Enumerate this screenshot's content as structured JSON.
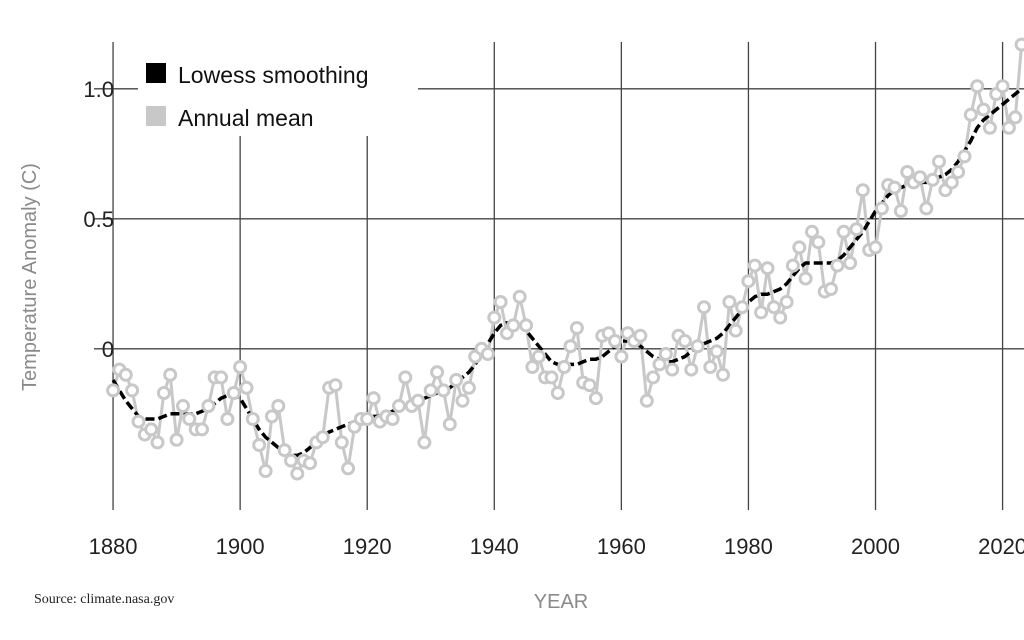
{
  "source": "Source: climate.nasa.gov",
  "colors": {
    "smoothing": "#000000",
    "annual": "#c8c8c8",
    "grid": "#444444",
    "marker_fill": "#ffffff"
  },
  "chart_data": {
    "type": "line",
    "title": "",
    "xlabel": "YEAR",
    "ylabel": "Temperature Anomaly (C)",
    "xlim": [
      1877,
      2024
    ],
    "ylim": [
      -0.62,
      1.18
    ],
    "x_ticks": [
      1880,
      1900,
      1920,
      1940,
      1960,
      1980,
      2000,
      2020
    ],
    "x_tick_labels": [
      "1880",
      "1900",
      "1920",
      "1940",
      "1960",
      "1980",
      "2000",
      "2020"
    ],
    "y_ticks": [
      0,
      0.5,
      1.0
    ],
    "y_tick_labels": [
      "0",
      "0.5",
      "1.0"
    ],
    "grid": true,
    "legend_position": "top-left",
    "legend": [
      {
        "label": "Lowess smoothing",
        "color": "#000000"
      },
      {
        "label": "Annual mean",
        "color": "#c8c8c8"
      }
    ],
    "series": [
      {
        "name": "Annual mean",
        "style": "line-with-circle-markers",
        "x_start": 1880,
        "values": [
          -0.16,
          -0.08,
          -0.1,
          -0.16,
          -0.28,
          -0.33,
          -0.31,
          -0.36,
          -0.17,
          -0.1,
          -0.35,
          -0.22,
          -0.27,
          -0.31,
          -0.31,
          -0.22,
          -0.11,
          -0.11,
          -0.27,
          -0.17,
          -0.07,
          -0.15,
          -0.27,
          -0.37,
          -0.47,
          -0.26,
          -0.22,
          -0.39,
          -0.43,
          -0.48,
          -0.43,
          -0.44,
          -0.36,
          -0.34,
          -0.15,
          -0.14,
          -0.36,
          -0.46,
          -0.3,
          -0.27,
          -0.27,
          -0.19,
          -0.28,
          -0.26,
          -0.27,
          -0.22,
          -0.11,
          -0.22,
          -0.2,
          -0.36,
          -0.16,
          -0.09,
          -0.16,
          -0.29,
          -0.12,
          -0.2,
          -0.15,
          -0.03,
          0.0,
          -0.02,
          0.12,
          0.18,
          0.06,
          0.09,
          0.2,
          0.09,
          -0.07,
          -0.03,
          -0.11,
          -0.11,
          -0.17,
          -0.07,
          0.01,
          0.08,
          -0.13,
          -0.14,
          -0.19,
          0.05,
          0.06,
          0.03,
          -0.03,
          0.06,
          0.03,
          0.05,
          -0.2,
          -0.11,
          -0.06,
          -0.02,
          -0.08,
          0.05,
          0.03,
          -0.08,
          0.01,
          0.16,
          -0.07,
          -0.01,
          -0.1,
          0.18,
          0.07,
          0.16,
          0.26,
          0.32,
          0.14,
          0.31,
          0.16,
          0.12,
          0.18,
          0.32,
          0.39,
          0.27,
          0.45,
          0.41,
          0.22,
          0.23,
          0.32,
          0.45,
          0.33,
          0.46,
          0.61,
          0.38,
          0.39,
          0.54,
          0.63,
          0.62,
          0.53,
          0.68,
          0.64,
          0.66,
          0.54,
          0.65,
          0.72,
          0.61,
          0.64,
          0.68,
          0.74,
          0.9,
          1.01,
          0.92,
          0.85,
          0.98,
          1.01,
          0.85,
          0.89,
          1.17
        ]
      },
      {
        "name": "Lowess smoothing",
        "style": "thick-dashed-line",
        "x_start": 1880,
        "values": [
          -0.12,
          -0.16,
          -0.2,
          -0.23,
          -0.26,
          -0.27,
          -0.27,
          -0.27,
          -0.26,
          -0.25,
          -0.25,
          -0.25,
          -0.25,
          -0.25,
          -0.24,
          -0.23,
          -0.21,
          -0.19,
          -0.18,
          -0.18,
          -0.19,
          -0.23,
          -0.27,
          -0.31,
          -0.34,
          -0.36,
          -0.38,
          -0.4,
          -0.41,
          -0.41,
          -0.4,
          -0.38,
          -0.36,
          -0.34,
          -0.32,
          -0.31,
          -0.3,
          -0.29,
          -0.28,
          -0.28,
          -0.27,
          -0.26,
          -0.26,
          -0.25,
          -0.24,
          -0.23,
          -0.22,
          -0.21,
          -0.2,
          -0.19,
          -0.18,
          -0.17,
          -0.16,
          -0.15,
          -0.13,
          -0.11,
          -0.09,
          -0.06,
          -0.02,
          0.02,
          0.06,
          0.09,
          0.1,
          0.1,
          0.09,
          0.07,
          0.04,
          0.01,
          -0.02,
          -0.05,
          -0.06,
          -0.07,
          -0.06,
          -0.06,
          -0.05,
          -0.04,
          -0.04,
          -0.03,
          -0.01,
          0.01,
          0.03,
          0.03,
          0.02,
          0.01,
          -0.01,
          -0.03,
          -0.04,
          -0.05,
          -0.05,
          -0.04,
          -0.03,
          -0.01,
          0.01,
          0.02,
          0.03,
          0.04,
          0.06,
          0.09,
          0.12,
          0.15,
          0.18,
          0.2,
          0.21,
          0.21,
          0.22,
          0.23,
          0.25,
          0.28,
          0.31,
          0.33,
          0.33,
          0.33,
          0.33,
          0.33,
          0.34,
          0.36,
          0.39,
          0.42,
          0.45,
          0.49,
          0.53,
          0.56,
          0.59,
          0.61,
          0.62,
          0.63,
          0.64,
          0.64,
          0.64,
          0.65,
          0.66,
          0.67,
          0.69,
          0.72,
          0.76,
          0.8,
          0.85,
          0.88,
          0.9,
          0.92,
          0.94,
          0.96,
          0.98,
          1.0
        ]
      }
    ]
  }
}
